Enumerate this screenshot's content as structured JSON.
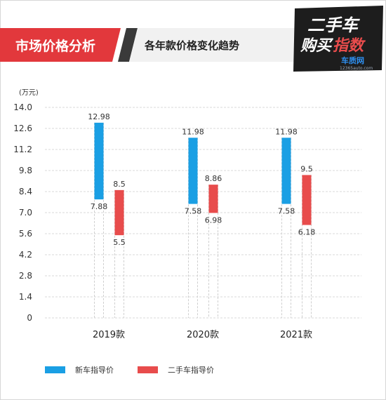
{
  "header": {
    "badge_title": "市场价格分析",
    "subtitle": "各年款价格变化趋势",
    "logo_line1": "二手车",
    "logo_line2a": "购买",
    "logo_line2b": "指数",
    "logo_site": "车质网",
    "logo_url": "12365auto.com"
  },
  "colors": {
    "new_car": "#1a9fe4",
    "used_car": "#e84c4c",
    "badge_red": "#e2383c",
    "badge_dark": "#3a3a3a",
    "grid": "#d9d9d9"
  },
  "chart_data": {
    "type": "bar",
    "chart_subtype": "floating-range-bar",
    "unit_label": "(万元)",
    "categories": [
      "2019款",
      "2020款",
      "2021款"
    ],
    "yticks": [
      "14.0",
      "12.6",
      "11.2",
      "9.8",
      "8.4",
      "7.0",
      "5.6",
      "4.2",
      "2.8",
      "1.4",
      "0"
    ],
    "ylim": [
      0,
      14.0
    ],
    "grid": true,
    "legend_position": "bottom-left",
    "series": [
      {
        "name": "新车指导价",
        "color": "#1a9fe4",
        "high": [
          12.98,
          11.98,
          11.98
        ],
        "low": [
          7.88,
          7.58,
          7.58
        ],
        "high_labels": [
          "12.98",
          "11.98",
          "11.98"
        ],
        "low_labels": [
          "7.88",
          "7.58",
          "7.58"
        ]
      },
      {
        "name": "二手车指导价",
        "color": "#e84c4c",
        "high": [
          8.5,
          8.86,
          9.5
        ],
        "low": [
          5.5,
          6.98,
          6.18
        ],
        "high_labels": [
          "8.5",
          "8.86",
          "9.5"
        ],
        "low_labels": [
          "5.5",
          "6.98",
          "6.18"
        ]
      }
    ]
  }
}
